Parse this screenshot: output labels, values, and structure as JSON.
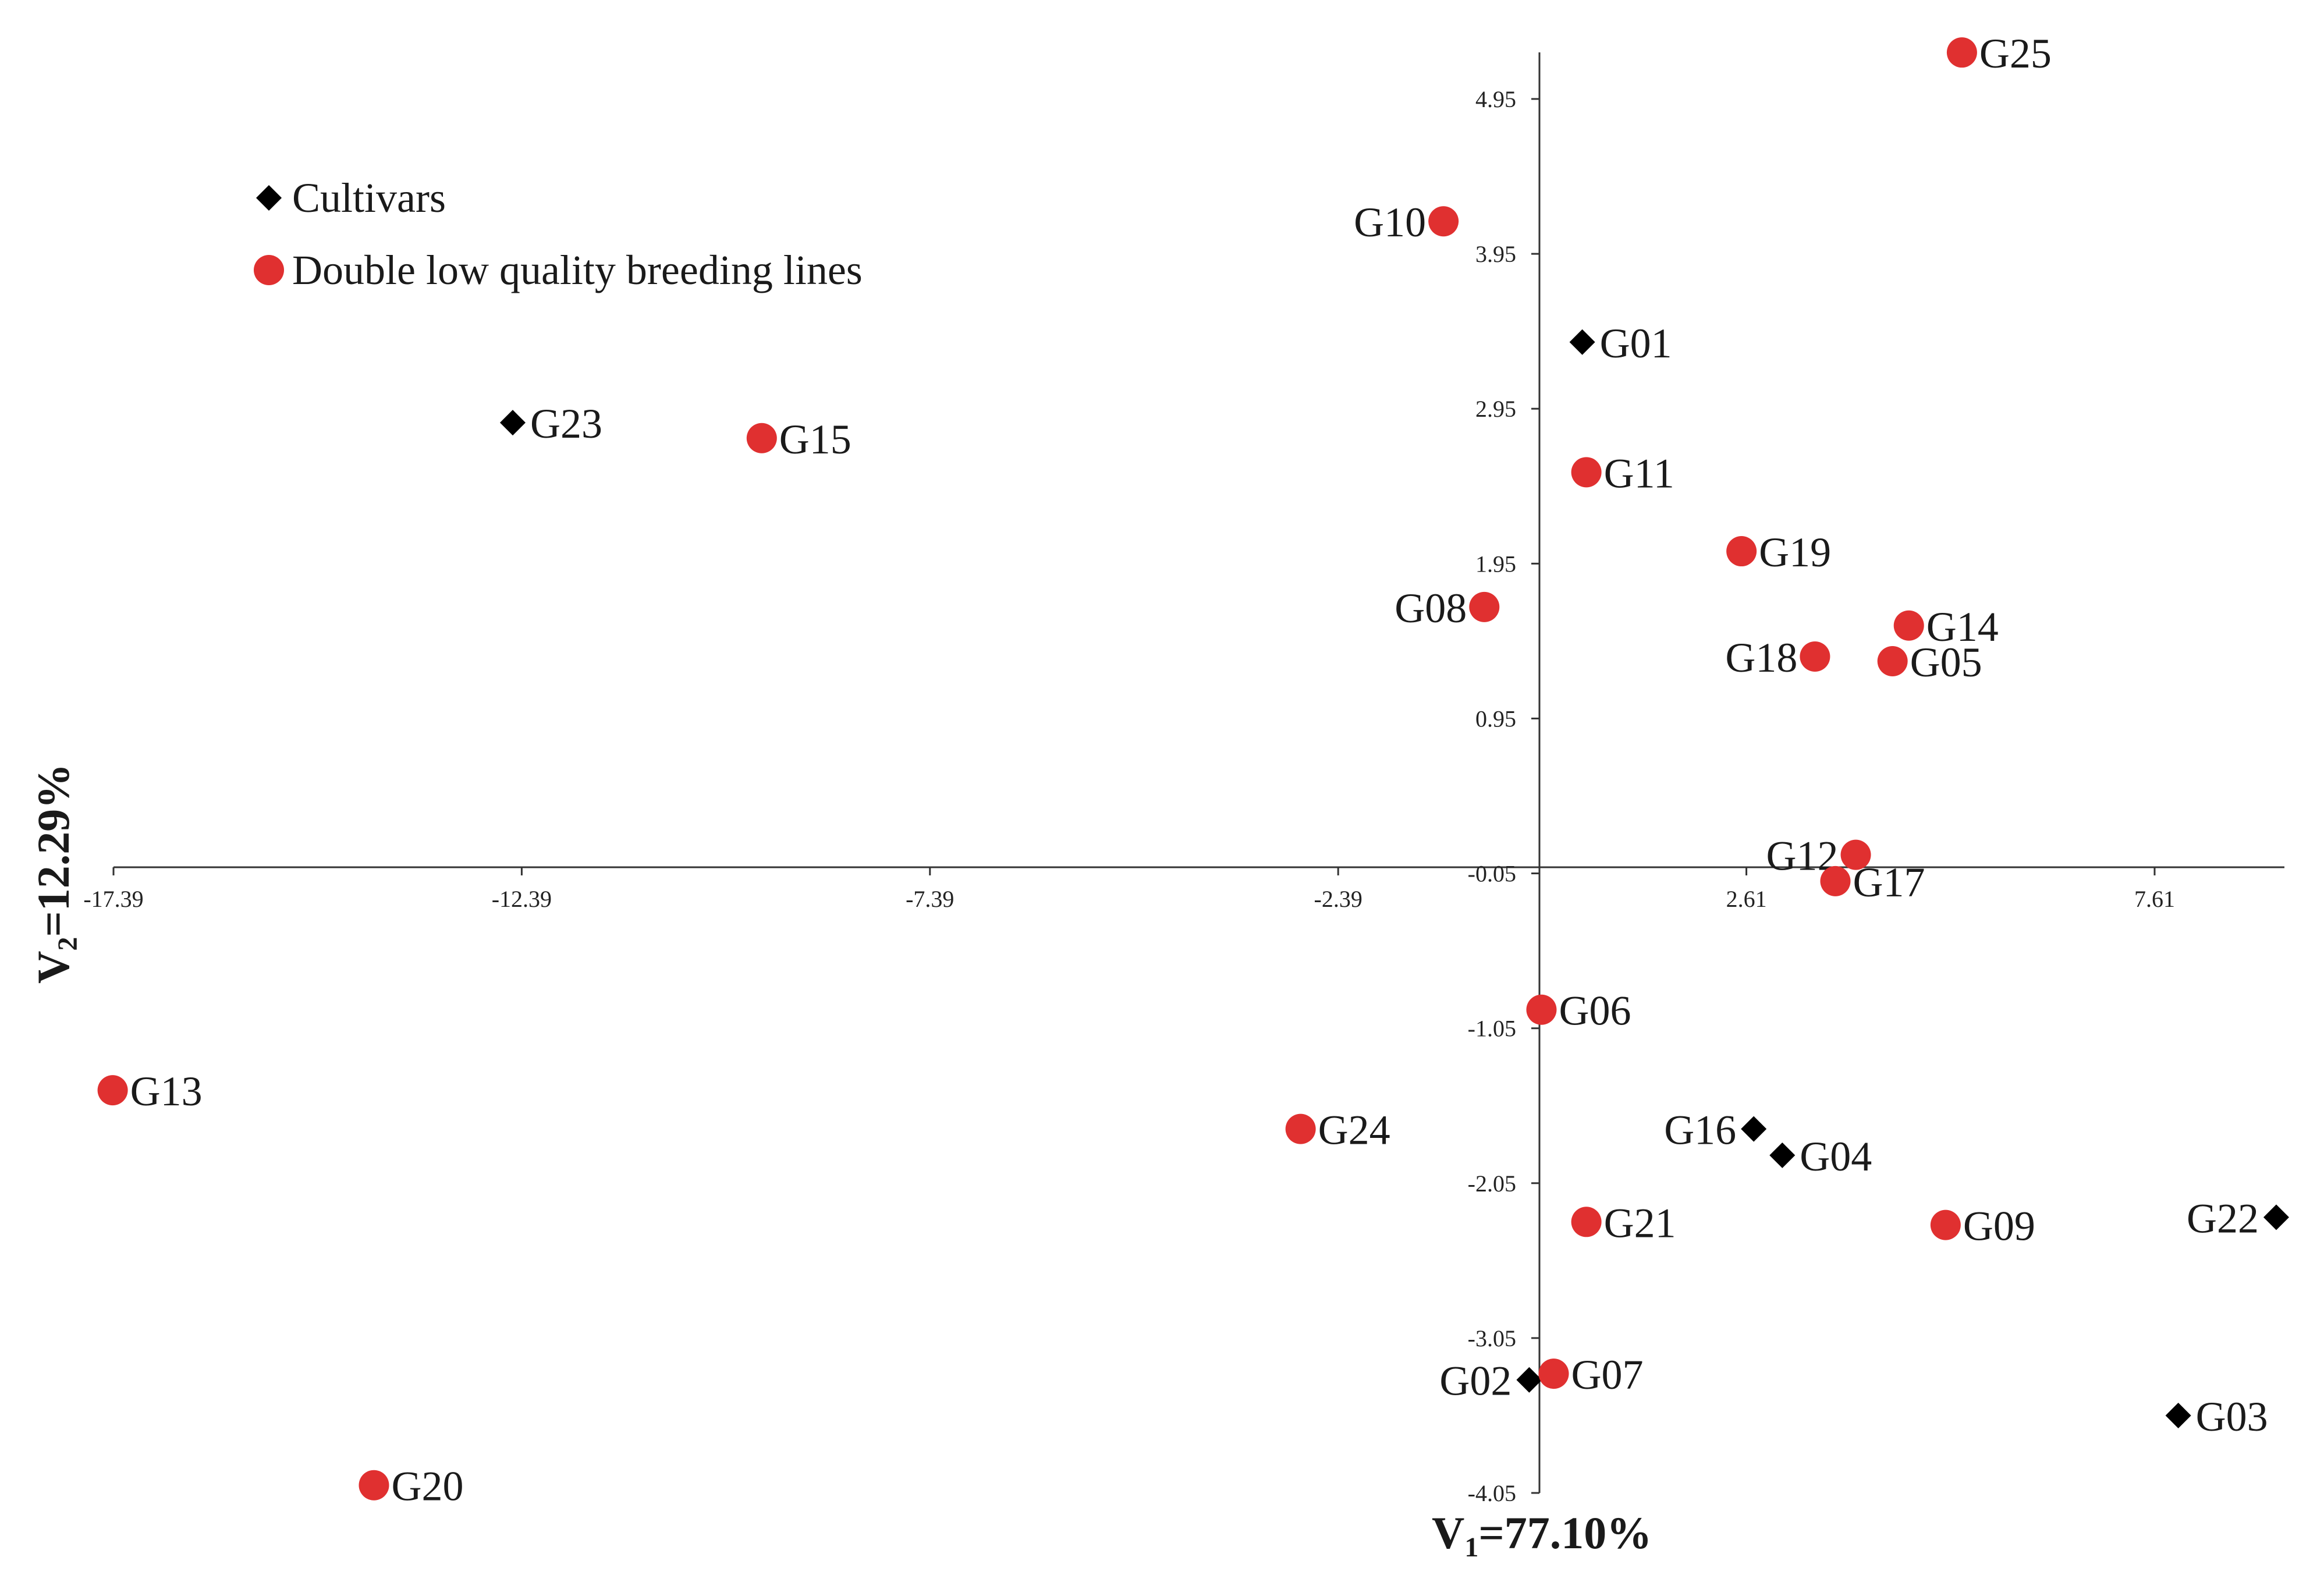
{
  "chart_data": {
    "type": "scatter",
    "xlabel_main": "V",
    "xlabel_sub": "1",
    "xlabel_rest": "=77.10%",
    "ylabel_main": "V",
    "ylabel_sub": "2",
    "ylabel_rest": "=12.29%",
    "xlim": [
      -17.39,
      9.2
    ],
    "ylim": [
      -4.05,
      5.3
    ],
    "x_ticks": [
      {
        "value": -17.39,
        "label": "-17.39"
      },
      {
        "value": -12.39,
        "label": "-12.39"
      },
      {
        "value": -7.39,
        "label": "-7.39"
      },
      {
        "value": -2.39,
        "label": "-2.39"
      },
      {
        "value": 2.61,
        "label": "2.61"
      },
      {
        "value": 7.61,
        "label": "7.61"
      }
    ],
    "y_ticks": [
      {
        "value": 4.95,
        "label": "4.95"
      },
      {
        "value": 3.95,
        "label": "3.95"
      },
      {
        "value": 2.95,
        "label": "2.95"
      },
      {
        "value": 1.95,
        "label": "1.95"
      },
      {
        "value": 0.95,
        "label": "0.95"
      },
      {
        "value": -0.05,
        "label": "-0.05"
      },
      {
        "value": -1.05,
        "label": "-1.05"
      },
      {
        "value": -2.05,
        "label": "-2.05"
      },
      {
        "value": -3.05,
        "label": "-3.05"
      },
      {
        "value": -4.05,
        "label": "-4.05"
      }
    ],
    "series": [
      {
        "name": "Cultivars",
        "marker": "diamond",
        "color": "#000000",
        "points": [
          {
            "label": "G01",
            "x": 0.6,
            "y": 3.38,
            "label_pos": "right"
          },
          {
            "label": "G23",
            "x": -12.5,
            "y": 2.86,
            "label_pos": "right"
          },
          {
            "label": "G16",
            "x": 2.7,
            "y": -1.7,
            "label_pos": "left"
          },
          {
            "label": "G04",
            "x": 3.05,
            "y": -1.87,
            "label_pos": "right"
          },
          {
            "label": "G22",
            "x": 9.1,
            "y": -2.27,
            "label_pos": "left"
          },
          {
            "label": "G02",
            "x": -0.05,
            "y": -3.32,
            "label_pos": "left"
          },
          {
            "label": "G03",
            "x": 7.9,
            "y": -3.55,
            "label_pos": "right"
          }
        ]
      },
      {
        "name": "Double low quality breeding lines",
        "marker": "circle",
        "color": "#e03030",
        "points": [
          {
            "label": "G25",
            "x": 5.25,
            "y": 5.25,
            "label_pos": "right"
          },
          {
            "label": "G10",
            "x": -1.1,
            "y": 4.16,
            "label_pos": "left"
          },
          {
            "label": "G15",
            "x": -9.45,
            "y": 2.76,
            "label_pos": "right"
          },
          {
            "label": "G11",
            "x": 0.65,
            "y": 2.54,
            "label_pos": "right"
          },
          {
            "label": "G19",
            "x": 2.55,
            "y": 2.03,
            "label_pos": "right"
          },
          {
            "label": "G08",
            "x": -0.6,
            "y": 1.67,
            "label_pos": "left"
          },
          {
            "label": "G14",
            "x": 4.6,
            "y": 1.55,
            "label_pos": "right"
          },
          {
            "label": "G18",
            "x": 3.45,
            "y": 1.35,
            "label_pos": "left"
          },
          {
            "label": "G05",
            "x": 4.4,
            "y": 1.32,
            "label_pos": "right"
          },
          {
            "label": "G12",
            "x": 3.95,
            "y": 0.07,
            "label_pos": "left"
          },
          {
            "label": "G17",
            "x": 3.7,
            "y": -0.1,
            "label_pos": "right"
          },
          {
            "label": "G06",
            "x": 0.1,
            "y": -0.93,
            "label_pos": "right"
          },
          {
            "label": "G13",
            "x": -17.4,
            "y": -1.45,
            "label_pos": "right"
          },
          {
            "label": "G24",
            "x": -2.85,
            "y": -1.7,
            "label_pos": "right"
          },
          {
            "label": "G21",
            "x": 0.65,
            "y": -2.3,
            "label_pos": "right"
          },
          {
            "label": "G09",
            "x": 5.05,
            "y": -2.32,
            "label_pos": "right"
          },
          {
            "label": "G07",
            "x": 0.25,
            "y": -3.28,
            "label_pos": "right"
          },
          {
            "label": "G20",
            "x": -14.2,
            "y": -4.0,
            "label_pos": "right"
          }
        ]
      }
    ],
    "legend": [
      {
        "label": "Cultivars",
        "marker": "diamond"
      },
      {
        "label": "Double low quality breeding lines",
        "marker": "circle"
      }
    ]
  }
}
